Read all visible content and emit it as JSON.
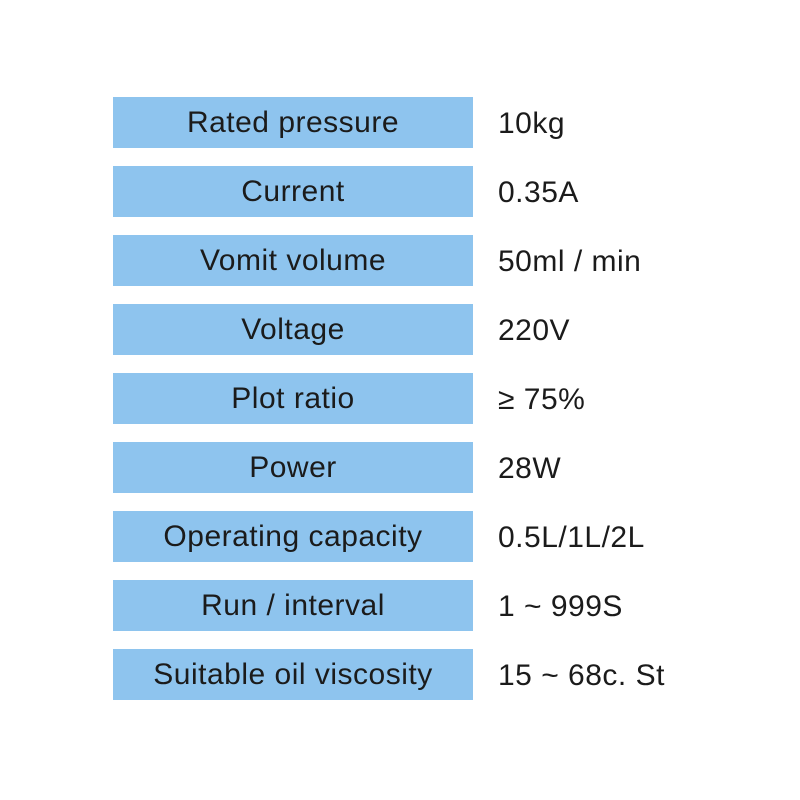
{
  "colors": {
    "label_background": "#8EC4EE",
    "text": "#1b1b1b",
    "page_background": "#ffffff"
  },
  "spec_table": {
    "rows": [
      {
        "label": "Rated pressure",
        "value": "10kg"
      },
      {
        "label": "Current",
        "value": "0.35A"
      },
      {
        "label": "Vomit volume",
        "value": "50ml / min"
      },
      {
        "label": "Voltage",
        "value": "220V"
      },
      {
        "label": "Plot ratio",
        "value": "≥ 75%"
      },
      {
        "label": "Power",
        "value": "28W"
      },
      {
        "label": "Operating capacity",
        "value": "0.5L/1L/2L"
      },
      {
        "label": "Run / interval",
        "value": "1 ~ 999S"
      },
      {
        "label": "Suitable oil viscosity",
        "value": "15 ~ 68c. St"
      }
    ]
  }
}
